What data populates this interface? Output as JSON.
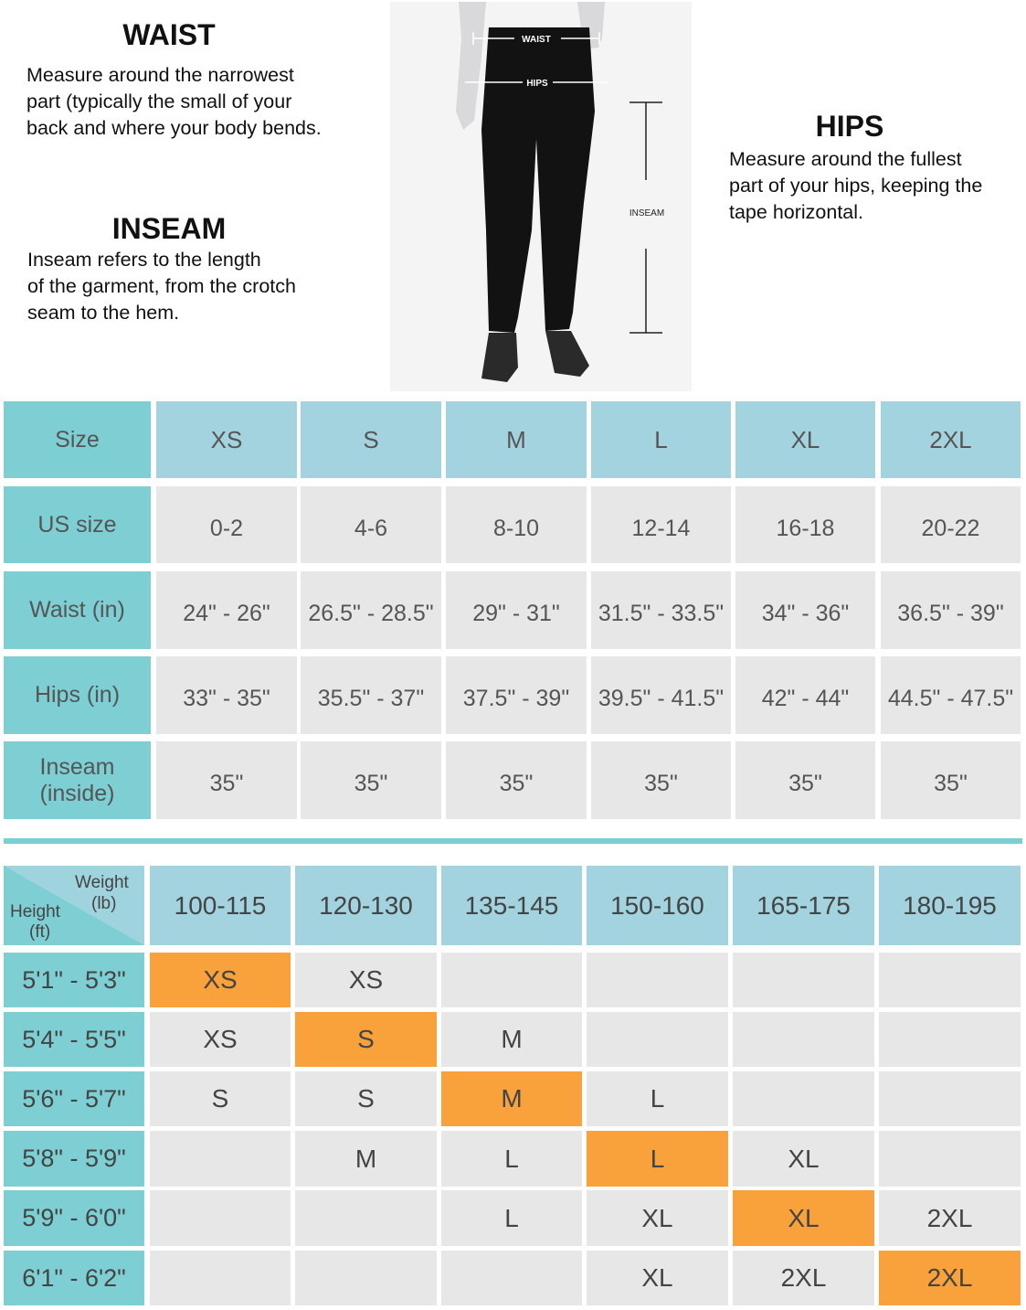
{
  "guide": {
    "waist": {
      "title": "WAIST",
      "lines": [
        "Measure around the narrowest",
        "part (typically the small of your",
        "back and where your body bends."
      ]
    },
    "inseam": {
      "title": "INSEAM",
      "lines": [
        "Inseam refers to the length",
        "of the garment, from the crotch",
        "seam to the hem."
      ]
    },
    "hips": {
      "title": "HIPS",
      "lines": [
        "Measure around the fullest",
        "part of your hips, keeping the",
        "tape horizontal."
      ]
    },
    "photo_labels": {
      "waist": "WAIST",
      "hips": "HIPS",
      "inseam": "INSEAM"
    }
  },
  "size_table": {
    "headers": [
      "Size",
      "XS",
      "S",
      "M",
      "L",
      "XL",
      "2XL"
    ],
    "rows": [
      {
        "label": "US size",
        "values": [
          "0-2",
          "4-6",
          "8-10",
          "12-14",
          "16-18",
          "20-22"
        ]
      },
      {
        "label": "Waist (in)",
        "values": [
          "24\" - 26\"",
          "26.5\" - 28.5\"",
          "29\" - 31\"",
          "31.5\" - 33.5\"",
          "34\" - 36\"",
          "36.5\" - 39\""
        ]
      },
      {
        "label": "Hips (in)",
        "values": [
          "33\" - 35\"",
          "35.5\" - 37\"",
          "37.5\" - 39\"",
          "39.5\" - 41.5\"",
          "42\" - 44\"",
          "44.5\" - 47.5\""
        ]
      },
      {
        "label": "Inseam\n(inside)",
        "values": [
          "35\"",
          "35\"",
          "35\"",
          "35\"",
          "35\"",
          "35\""
        ]
      }
    ]
  },
  "fit_table": {
    "corner": {
      "weight": "Weight",
      "weight_unit": "(lb)",
      "height": "Height",
      "height_unit": "(ft)"
    },
    "weights": [
      "100-115",
      "120-130",
      "135-145",
      "150-160",
      "165-175",
      "180-195"
    ],
    "rows": [
      {
        "height": "5'1\" - 5'3\"",
        "sizes": [
          "XS",
          "XS",
          "",
          "",
          "",
          ""
        ],
        "recommended": 0
      },
      {
        "height": "5'4\" - 5'5\"",
        "sizes": [
          "XS",
          "S",
          "M",
          "",
          "",
          ""
        ],
        "recommended": 1
      },
      {
        "height": "5'6\" - 5'7\"",
        "sizes": [
          "S",
          "S",
          "M",
          "L",
          "",
          ""
        ],
        "recommended": 2
      },
      {
        "height": "5'8\" - 5'9\"",
        "sizes": [
          "",
          "M",
          "L",
          "L",
          "XL",
          ""
        ],
        "recommended": 3
      },
      {
        "height": "5'9\" - 6'0\"",
        "sizes": [
          "",
          "",
          "L",
          "XL",
          "XL",
          "2XL"
        ],
        "recommended": 4
      },
      {
        "height": "6'1\" - 6'2\"",
        "sizes": [
          "",
          "",
          "",
          "XL",
          "2XL",
          "2XL"
        ],
        "recommended": 5
      }
    ]
  },
  "colors": {
    "teal": "#7dcfd3",
    "header_blue": "#a2d3df",
    "cell_grey": "#e7e7e7",
    "highlight_orange": "#f9a13b"
  }
}
